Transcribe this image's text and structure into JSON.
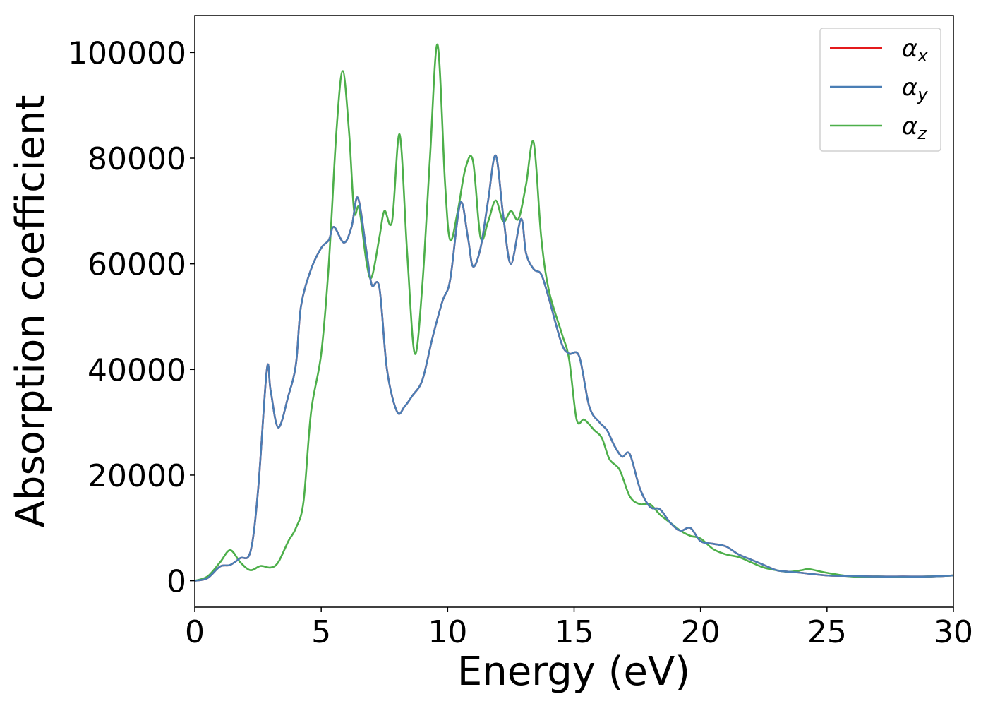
{
  "chart_data": {
    "type": "line",
    "title": "",
    "xlabel": "Energy (eV)",
    "ylabel": "Absorption coefficient",
    "xlim": [
      0,
      30
    ],
    "ylim": [
      -5000,
      107000
    ],
    "x_ticks": [
      "0",
      "5",
      "10",
      "15",
      "20",
      "25",
      "30"
    ],
    "x_tick_values": [
      0,
      5,
      10,
      15,
      20,
      25,
      30
    ],
    "y_ticks": [
      "0",
      "20000",
      "40000",
      "60000",
      "80000",
      "100000"
    ],
    "y_tick_values": [
      0,
      20000,
      40000,
      60000,
      80000,
      100000
    ],
    "grid": false,
    "legend_position": "top-right",
    "series": [
      {
        "name": "α_x",
        "legend_symbol": "α",
        "legend_sub": "x",
        "color": "#e41a1c",
        "points": [
          [
            0,
            0
          ],
          [
            0.5,
            500
          ],
          [
            1,
            2700
          ],
          [
            1.4,
            3000
          ],
          [
            1.8,
            4300
          ],
          [
            2.2,
            5500
          ],
          [
            2.5,
            17000
          ],
          [
            2.85,
            40000
          ],
          [
            3,
            36000
          ],
          [
            3.3,
            29000
          ],
          [
            3.7,
            35000
          ],
          [
            4,
            41000
          ],
          [
            4.2,
            52000
          ],
          [
            4.6,
            59000
          ],
          [
            5,
            63000
          ],
          [
            5.3,
            64500
          ],
          [
            5.5,
            67000
          ],
          [
            5.9,
            64000
          ],
          [
            6.2,
            67000
          ],
          [
            6.45,
            72500
          ],
          [
            6.8,
            62000
          ],
          [
            7,
            56000
          ],
          [
            7.3,
            55500
          ],
          [
            7.6,
            40000
          ],
          [
            8,
            32000
          ],
          [
            8.3,
            33000
          ],
          [
            8.6,
            35000
          ],
          [
            9,
            38000
          ],
          [
            9.4,
            46000
          ],
          [
            9.8,
            53000
          ],
          [
            10.1,
            57000
          ],
          [
            10.5,
            71500
          ],
          [
            10.8,
            65000
          ],
          [
            11,
            59500
          ],
          [
            11.3,
            63000
          ],
          [
            11.6,
            72000
          ],
          [
            11.9,
            80500
          ],
          [
            12.2,
            69000
          ],
          [
            12.5,
            60000
          ],
          [
            12.9,
            68500
          ],
          [
            13.1,
            62000
          ],
          [
            13.4,
            59000
          ],
          [
            13.7,
            58000
          ],
          [
            14,
            53500
          ],
          [
            14.5,
            45000
          ],
          [
            14.8,
            43000
          ],
          [
            15.2,
            42500
          ],
          [
            15.6,
            33000
          ],
          [
            16,
            30000
          ],
          [
            16.3,
            28500
          ],
          [
            16.6,
            25500
          ],
          [
            16.9,
            23500
          ],
          [
            17.2,
            24000
          ],
          [
            17.6,
            17500
          ],
          [
            18,
            14000
          ],
          [
            18.4,
            13500
          ],
          [
            18.8,
            11000
          ],
          [
            19.2,
            9500
          ],
          [
            19.6,
            10000
          ],
          [
            20,
            7500
          ],
          [
            20.5,
            7000
          ],
          [
            21,
            6500
          ],
          [
            21.5,
            5000
          ],
          [
            22,
            4000
          ],
          [
            22.5,
            3000
          ],
          [
            23,
            2000
          ],
          [
            23.5,
            1700
          ],
          [
            24,
            1500
          ],
          [
            25,
            1000
          ],
          [
            26,
            900
          ],
          [
            27,
            800
          ],
          [
            28,
            800
          ],
          [
            29,
            800
          ],
          [
            30,
            1000
          ]
        ]
      },
      {
        "name": "α_y",
        "legend_symbol": "α",
        "legend_sub": "y",
        "color": "#4a7eb5",
        "points": [
          [
            0,
            0
          ],
          [
            0.5,
            500
          ],
          [
            1,
            2700
          ],
          [
            1.4,
            3000
          ],
          [
            1.8,
            4300
          ],
          [
            2.2,
            5500
          ],
          [
            2.5,
            17000
          ],
          [
            2.85,
            40000
          ],
          [
            3,
            36000
          ],
          [
            3.3,
            29000
          ],
          [
            3.7,
            35000
          ],
          [
            4,
            41000
          ],
          [
            4.2,
            52000
          ],
          [
            4.6,
            59000
          ],
          [
            5,
            63000
          ],
          [
            5.3,
            64500
          ],
          [
            5.5,
            67000
          ],
          [
            5.9,
            64000
          ],
          [
            6.2,
            67000
          ],
          [
            6.45,
            72500
          ],
          [
            6.8,
            62000
          ],
          [
            7,
            56000
          ],
          [
            7.3,
            55500
          ],
          [
            7.6,
            40000
          ],
          [
            8,
            32000
          ],
          [
            8.3,
            33000
          ],
          [
            8.6,
            35000
          ],
          [
            9,
            38000
          ],
          [
            9.4,
            46000
          ],
          [
            9.8,
            53000
          ],
          [
            10.1,
            57000
          ],
          [
            10.5,
            71500
          ],
          [
            10.8,
            65000
          ],
          [
            11,
            59500
          ],
          [
            11.3,
            63000
          ],
          [
            11.6,
            72000
          ],
          [
            11.9,
            80500
          ],
          [
            12.2,
            69000
          ],
          [
            12.5,
            60000
          ],
          [
            12.9,
            68500
          ],
          [
            13.1,
            62000
          ],
          [
            13.4,
            59000
          ],
          [
            13.7,
            58000
          ],
          [
            14,
            53500
          ],
          [
            14.5,
            45000
          ],
          [
            14.8,
            43000
          ],
          [
            15.2,
            42500
          ],
          [
            15.6,
            33000
          ],
          [
            16,
            30000
          ],
          [
            16.3,
            28500
          ],
          [
            16.6,
            25500
          ],
          [
            16.9,
            23500
          ],
          [
            17.2,
            24000
          ],
          [
            17.6,
            17500
          ],
          [
            18,
            14000
          ],
          [
            18.4,
            13500
          ],
          [
            18.8,
            11000
          ],
          [
            19.2,
            9500
          ],
          [
            19.6,
            10000
          ],
          [
            20,
            7500
          ],
          [
            20.5,
            7000
          ],
          [
            21,
            6500
          ],
          [
            21.5,
            5000
          ],
          [
            22,
            4000
          ],
          [
            22.5,
            3000
          ],
          [
            23,
            2000
          ],
          [
            23.5,
            1700
          ],
          [
            24,
            1500
          ],
          [
            25,
            1000
          ],
          [
            26,
            900
          ],
          [
            27,
            800
          ],
          [
            28,
            800
          ],
          [
            29,
            800
          ],
          [
            30,
            1000
          ]
        ]
      },
      {
        "name": "α_z",
        "legend_symbol": "α",
        "legend_sub": "z",
        "color": "#4daf4a",
        "points": [
          [
            0,
            0
          ],
          [
            0.5,
            800
          ],
          [
            1,
            3500
          ],
          [
            1.4,
            5800
          ],
          [
            1.8,
            3500
          ],
          [
            2.2,
            2000
          ],
          [
            2.6,
            2800
          ],
          [
            3,
            2500
          ],
          [
            3.3,
            3500
          ],
          [
            3.7,
            7500
          ],
          [
            4,
            10000
          ],
          [
            4.3,
            15000
          ],
          [
            4.6,
            32000
          ],
          [
            5,
            43000
          ],
          [
            5.3,
            60000
          ],
          [
            5.6,
            85000
          ],
          [
            5.85,
            96500
          ],
          [
            6.1,
            85000
          ],
          [
            6.3,
            70000
          ],
          [
            6.5,
            70500
          ],
          [
            6.8,
            60000
          ],
          [
            7,
            57500
          ],
          [
            7.3,
            65000
          ],
          [
            7.5,
            70000
          ],
          [
            7.8,
            68000
          ],
          [
            8.1,
            84500
          ],
          [
            8.4,
            62000
          ],
          [
            8.7,
            43000
          ],
          [
            9,
            56000
          ],
          [
            9.3,
            80000
          ],
          [
            9.6,
            101500
          ],
          [
            9.9,
            75000
          ],
          [
            10.1,
            64500
          ],
          [
            10.4,
            70000
          ],
          [
            10.7,
            78000
          ],
          [
            11,
            79500
          ],
          [
            11.3,
            65000
          ],
          [
            11.6,
            68000
          ],
          [
            11.9,
            72000
          ],
          [
            12.2,
            68000
          ],
          [
            12.5,
            70000
          ],
          [
            12.8,
            68500
          ],
          [
            13.1,
            75000
          ],
          [
            13.4,
            83000
          ],
          [
            13.7,
            65000
          ],
          [
            14,
            55000
          ],
          [
            14.5,
            47000
          ],
          [
            14.8,
            42000
          ],
          [
            15.1,
            30500
          ],
          [
            15.4,
            30500
          ],
          [
            15.8,
            28500
          ],
          [
            16.1,
            27000
          ],
          [
            16.4,
            23000
          ],
          [
            16.8,
            21000
          ],
          [
            17.2,
            16000
          ],
          [
            17.6,
            14500
          ],
          [
            18,
            14500
          ],
          [
            18.4,
            12500
          ],
          [
            18.8,
            11000
          ],
          [
            19.2,
            9500
          ],
          [
            19.6,
            8500
          ],
          [
            20,
            8000
          ],
          [
            20.5,
            6000
          ],
          [
            21,
            5000
          ],
          [
            21.5,
            4500
          ],
          [
            22,
            3500
          ],
          [
            22.5,
            2500
          ],
          [
            23,
            2000
          ],
          [
            23.5,
            1700
          ],
          [
            24,
            2000
          ],
          [
            24.3,
            2200
          ],
          [
            25,
            1500
          ],
          [
            26,
            800
          ],
          [
            27,
            800
          ],
          [
            28,
            700
          ],
          [
            29,
            800
          ],
          [
            30,
            1000
          ]
        ]
      }
    ]
  }
}
